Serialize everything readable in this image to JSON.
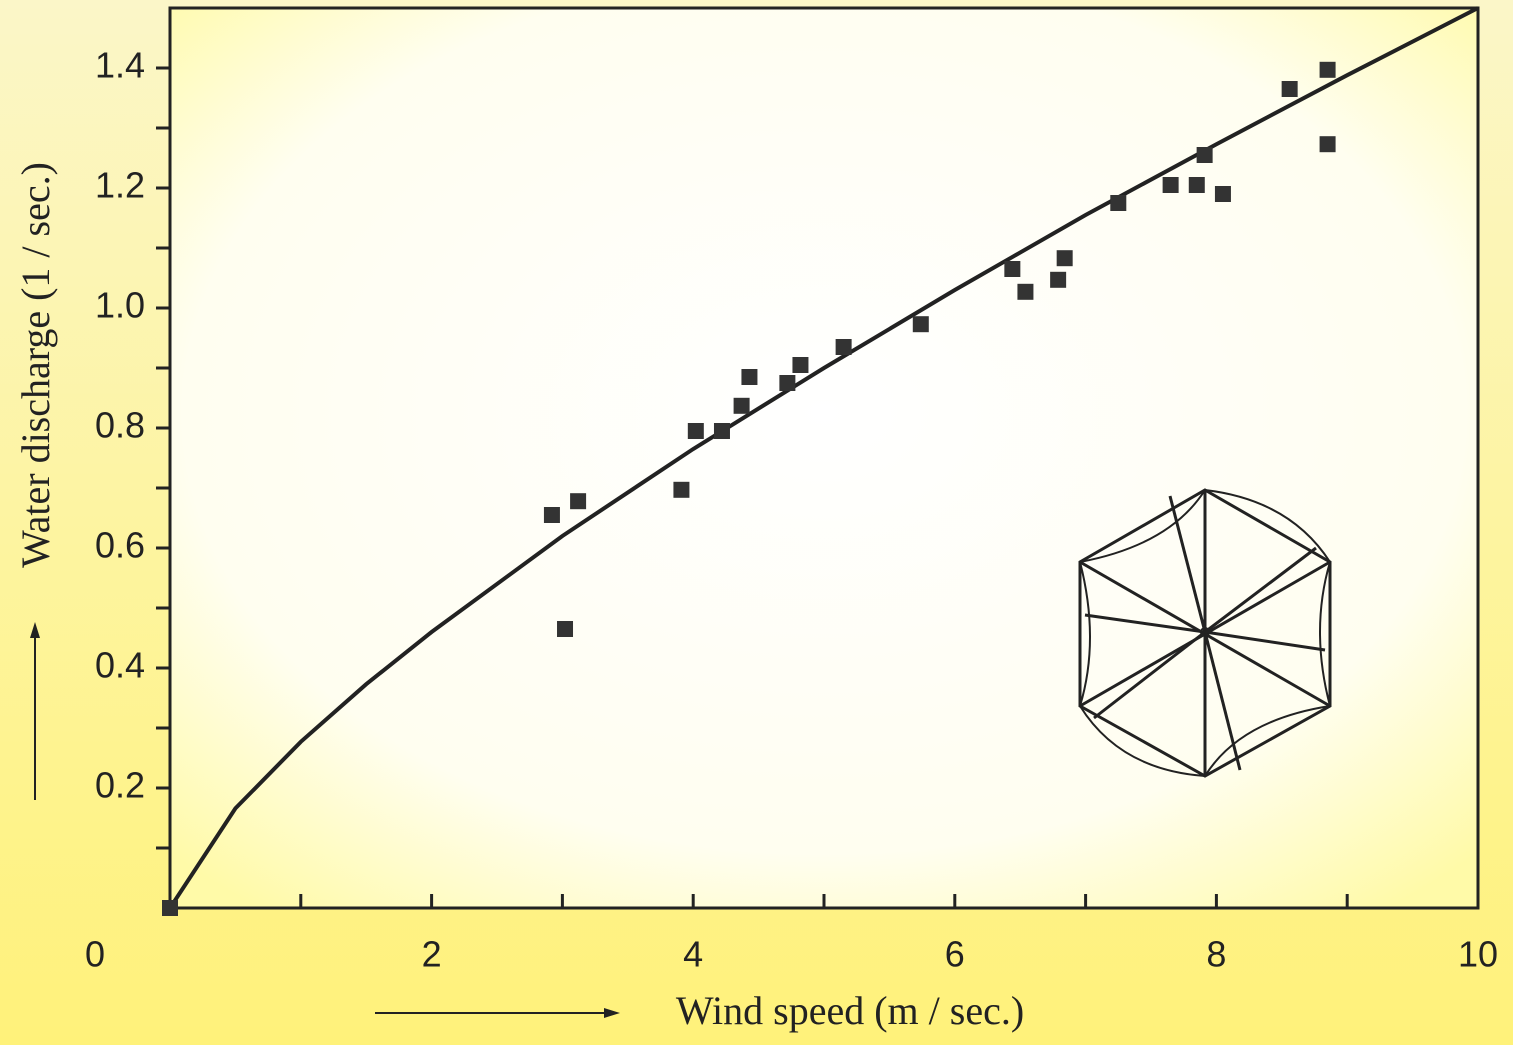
{
  "chart_data": {
    "type": "scatter",
    "xlabel": "Wind speed  (m / sec.)",
    "ylabel": "Water discharge  (1 / sec.)",
    "x": [
      0,
      2.92,
      3.12,
      3.02,
      3.91,
      4.02,
      4.22,
      4.37,
      4.43,
      4.72,
      4.82,
      5.15,
      5.74,
      6.44,
      6.54,
      6.79,
      6.84,
      7.25,
      7.65,
      7.85,
      7.91,
      8.05,
      8.56,
      8.85,
      8.85
    ],
    "values": [
      0,
      0.655,
      0.678,
      0.465,
      0.697,
      0.795,
      0.795,
      0.837,
      0.885,
      0.875,
      0.905,
      0.935,
      0.973,
      1.065,
      1.027,
      1.047,
      1.083,
      1.175,
      1.205,
      1.205,
      1.255,
      1.19,
      1.365,
      1.397,
      1.273
    ],
    "color": "#333333",
    "fit": {
      "x": [
        0,
        0.5,
        1,
        1.5,
        2,
        3,
        4,
        5,
        6,
        7,
        8,
        9,
        10
      ],
      "values": [
        0,
        0.166,
        0.277,
        0.373,
        0.46,
        0.62,
        0.765,
        0.9,
        1.03,
        1.155,
        1.273,
        1.388,
        1.5
      ],
      "color": "#222222"
    },
    "xlim": [
      0,
      10
    ],
    "ylim": [
      0,
      1.5
    ],
    "xticks": [
      0,
      2,
      4,
      6,
      8,
      10
    ],
    "xminorticks": [
      1,
      3,
      5,
      7,
      9
    ],
    "yticks": [
      0.2,
      0.4,
      0.6,
      0.8,
      {
        "value": 1,
        "label": "1.0"
      },
      1.2,
      1.4
    ],
    "yminorticks": [
      0.1,
      0.3,
      0.5,
      0.7,
      0.9,
      1.1,
      1.3
    ]
  }
}
